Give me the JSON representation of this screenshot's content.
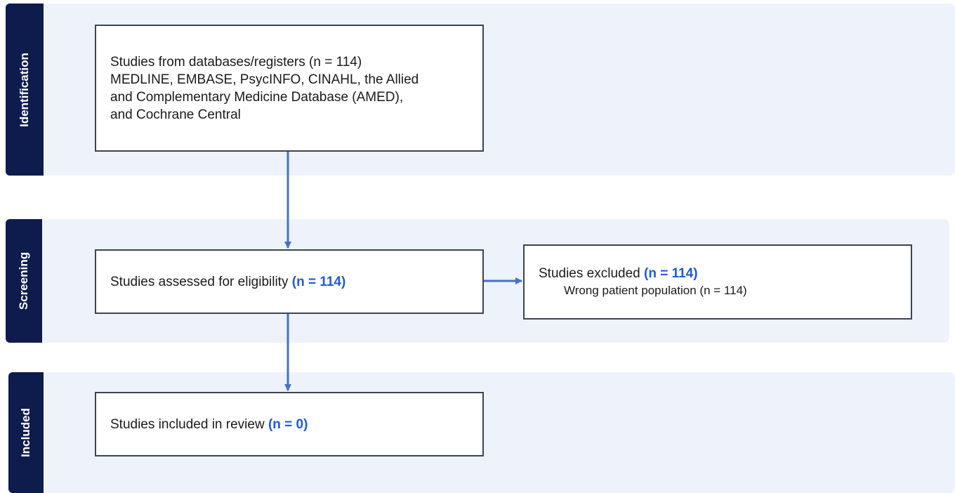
{
  "stages": [
    {
      "label": "Identification"
    },
    {
      "label": "Screening"
    },
    {
      "label": "Included"
    }
  ],
  "nodes": [
    {
      "lines": [
        "Studies from databases/registers (n = 114)",
        "MEDLINE, EMBASE, PsycINFO, CINAHL, the Allied",
        "and Complementary Medicine Database (AMED),",
        "and Cochrane Central"
      ]
    },
    {
      "text": "Studies assessed for eligibility",
      "count": "(n = 114)"
    },
    {
      "text": "Studies excluded",
      "count": "(n = 114)",
      "reason": "Wrong patient population (n = 114)"
    },
    {
      "text": "Studies included in review",
      "count": "(n = 0)"
    }
  ]
}
